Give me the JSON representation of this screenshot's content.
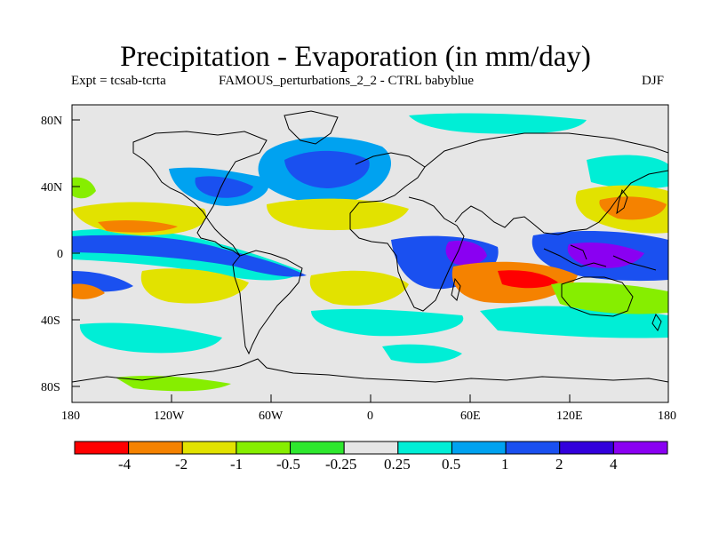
{
  "title": "Precipitation - Evaporation (in mm/day)",
  "subtitle": {
    "expt": "Expt = tcsab-tcrta",
    "run": "FAMOUS_perturbations_2_2 - CTRL babyblue",
    "season": "DJF"
  },
  "axes": {
    "lat_labels": [
      "80N",
      "40N",
      "0",
      "40S",
      "80S"
    ],
    "lon_labels": [
      "180",
      "120W",
      "60W",
      "0",
      "60E",
      "120E",
      "180"
    ]
  },
  "colorbar": {
    "colors": [
      "#ff0000",
      "#f58200",
      "#e2e200",
      "#86ee00",
      "#2ee82e",
      "#e6e6e6",
      "#00eed6",
      "#00a2f0",
      "#1a50f0",
      "#3200dc",
      "#8a00f2"
    ],
    "labels": [
      "-4",
      "-2",
      "-1",
      "-0.5",
      "-0.25",
      "0.25",
      "0.5",
      "1",
      "2",
      "4"
    ]
  },
  "map": {
    "background_color": "#e6e6e6",
    "coast_color": "#000000"
  }
}
